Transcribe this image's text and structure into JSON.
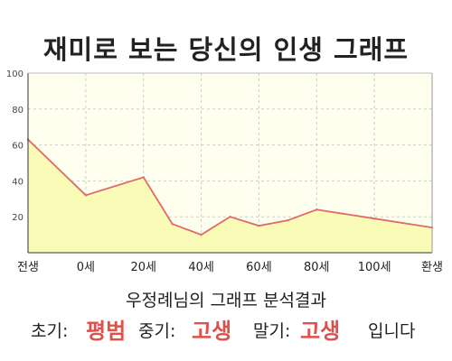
{
  "page": {
    "title": "재미로 보는 당신의 인생 그래프",
    "subtitle": "우정례님의 그래프 분석결과"
  },
  "result": {
    "early_label": "초기:",
    "early_value": "평범",
    "mid_label": "중기:",
    "mid_value": "고생",
    "late_label": "말기:",
    "late_value": "고생",
    "suffix": "입니다"
  },
  "chart_data": {
    "type": "area",
    "x_labels": [
      "전생",
      "0세",
      "20세",
      "40세",
      "60세",
      "80세",
      "100세",
      "환생"
    ],
    "points": [
      {
        "x": -20,
        "y": 63
      },
      {
        "x": 0,
        "y": 32
      },
      {
        "x": 20,
        "y": 42
      },
      {
        "x": 30,
        "y": 16
      },
      {
        "x": 40,
        "y": 10
      },
      {
        "x": 50,
        "y": 20
      },
      {
        "x": 60,
        "y": 15
      },
      {
        "x": 70,
        "y": 18
      },
      {
        "x": 80,
        "y": 24
      },
      {
        "x": 100,
        "y": 19
      },
      {
        "x": 120,
        "y": 14
      }
    ],
    "y_ticks": [
      20,
      40,
      60,
      80,
      100
    ],
    "ylim": [
      0,
      100
    ],
    "xlim": [
      -20,
      120
    ],
    "grid": true,
    "colors": {
      "line": "#e06a66",
      "fill": "#fbfbb8",
      "plot_background": "#fffff0",
      "grid": "#cccccc",
      "accent_text": "#e0504a"
    }
  }
}
